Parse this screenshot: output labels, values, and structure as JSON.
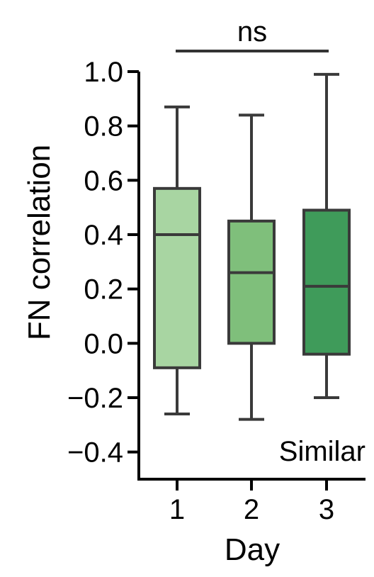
{
  "chart_data": {
    "type": "box",
    "xlabel": "Day",
    "ylabel": "FN correlation",
    "categories": [
      "1",
      "2",
      "3"
    ],
    "ylim": [
      -0.5,
      1.0
    ],
    "yticks": [
      "1.0",
      "0.8",
      "0.6",
      "0.4",
      "0.2",
      "0.0",
      "−0.2",
      "−0.4"
    ],
    "ytick_values": [
      1.0,
      0.8,
      0.6,
      0.4,
      0.2,
      0.0,
      -0.2,
      -0.4
    ],
    "boxes": [
      {
        "category": "1",
        "whisker_low": -0.26,
        "q1": -0.09,
        "median": 0.4,
        "q3": 0.57,
        "whisker_high": 0.87,
        "color": "#a8d5a2"
      },
      {
        "category": "2",
        "whisker_low": -0.28,
        "q1": 0.0,
        "median": 0.26,
        "q3": 0.45,
        "whisker_high": 0.84,
        "color": "#7fbf7b"
      },
      {
        "category": "3",
        "whisker_low": -0.2,
        "q1": -0.04,
        "median": 0.21,
        "q3": 0.49,
        "whisker_high": 0.99,
        "color": "#3f9b5a"
      }
    ],
    "significance": {
      "label": "ns",
      "from": "1",
      "to": "3"
    },
    "annotation": "Similar",
    "grid": false,
    "legend": "none"
  }
}
